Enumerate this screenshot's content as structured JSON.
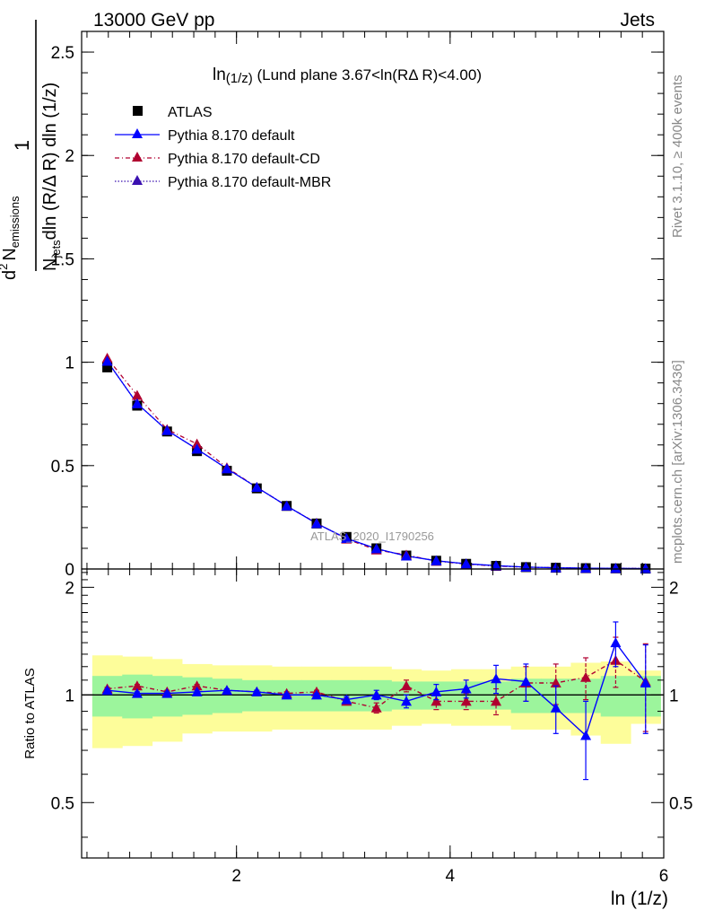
{
  "header": {
    "energy": "13000 GeV pp",
    "process": "Jets"
  },
  "side": {
    "rivet": "Rivet 3.1.10, ≥ 400k events",
    "mcplots": "mcplots.cern.ch [arXiv:1306.3436]"
  },
  "watermark": "ATLAS_2020_I1790256",
  "chart_data": [
    {
      "type": "scatter",
      "panel": "main",
      "title": "ln(1/z) (Lund plane 3.67<ln(RΔ R)<4.00)",
      "title_parts": {
        "main": "ln",
        "sub": "(1/z)",
        "rest": " (Lund plane 3.67<ln(RΔ R)<4.00)"
      },
      "ylabel": {
        "frac": "1",
        "njets": "N",
        "njets_sub": "jets",
        "den_rest": "dln (R/Δ R) dln (1/z)",
        "d2": "d",
        "sup2": "2",
        "nemis": "N",
        "nemis_sub": "emissions"
      },
      "xlabel": "ln (1/z)",
      "xlim": [
        0.55,
        6.0
      ],
      "ylim": [
        0,
        2.6
      ],
      "yticks": [
        0,
        0.5,
        1,
        1.5,
        2,
        2.5
      ],
      "ytick_labels": [
        "0",
        "0.5",
        "1",
        "1.5",
        "2",
        "2.5"
      ],
      "legend": [
        "ATLAS",
        "Pythia 8.170 default",
        "Pythia 8.170 default-CD",
        "Pythia 8.170 default-MBR"
      ],
      "x": [
        0.79,
        1.07,
        1.35,
        1.63,
        1.91,
        2.19,
        2.47,
        2.75,
        3.03,
        3.31,
        3.59,
        3.87,
        4.15,
        4.43,
        4.71,
        4.99,
        5.27,
        5.55,
        5.83
      ],
      "series": [
        {
          "name": "ATLAS",
          "color": "#000000",
          "values": [
            0.975,
            0.79,
            0.665,
            0.57,
            0.475,
            0.39,
            0.305,
            0.22,
            0.155,
            0.1,
            0.065,
            0.04,
            0.025,
            0.015,
            0.009,
            0.006,
            0.004,
            0.003,
            0.002
          ]
        },
        {
          "name": "Pythia 8.170 default",
          "color": "#0000ff",
          "values": [
            1.005,
            0.8,
            0.67,
            0.58,
            0.485,
            0.395,
            0.305,
            0.22,
            0.148,
            0.098,
            0.063,
            0.04,
            0.025,
            0.016,
            0.009,
            0.006,
            0.004,
            0.003,
            0.002
          ]
        },
        {
          "name": "Pythia 8.170 default-CD",
          "color": "#b00030",
          "values": [
            1.02,
            0.84,
            0.675,
            0.605,
            0.49,
            0.395,
            0.305,
            0.222,
            0.145,
            0.092,
            0.068,
            0.038,
            0.024,
            0.014,
            0.009,
            0.006,
            0.004,
            0.003,
            0.002
          ]
        },
        {
          "name": "Pythia 8.170 default-MBR",
          "color": "#3a10b0",
          "values": [
            1.005,
            0.8,
            0.67,
            0.58,
            0.485,
            0.395,
            0.305,
            0.22,
            0.148,
            0.098,
            0.063,
            0.04,
            0.025,
            0.016,
            0.009,
            0.006,
            0.004,
            0.003,
            0.002
          ]
        }
      ]
    },
    {
      "type": "scatter",
      "panel": "ratio",
      "ylabel": "Ratio to ATLAS",
      "xlabel": "ln (1/z)",
      "xlim": [
        0.55,
        6.0
      ],
      "ylim": [
        0.35,
        2.25
      ],
      "xticks": [
        2,
        4,
        6
      ],
      "xtick_labels": [
        "2",
        "4",
        "6"
      ],
      "yticks": [
        0.5,
        1,
        2
      ],
      "ytick_labels": [
        "0.5",
        "1",
        "2"
      ],
      "bin_edges": [
        0.65,
        0.93,
        1.21,
        1.49,
        1.77,
        2.05,
        2.33,
        2.61,
        2.89,
        3.17,
        3.45,
        3.73,
        4.01,
        4.29,
        4.57,
        4.85,
        5.13,
        5.41,
        5.69,
        5.97
      ],
      "band_green_low": [
        0.87,
        0.86,
        0.87,
        0.88,
        0.89,
        0.9,
        0.9,
        0.9,
        0.9,
        0.9,
        0.91,
        0.91,
        0.91,
        0.91,
        0.89,
        0.89,
        0.89,
        0.87,
        0.87
      ],
      "band_green_high": [
        1.13,
        1.14,
        1.13,
        1.12,
        1.11,
        1.1,
        1.1,
        1.1,
        1.1,
        1.1,
        1.09,
        1.09,
        1.09,
        1.09,
        1.11,
        1.11,
        1.11,
        1.13,
        1.13
      ],
      "band_yellow_low": [
        0.71,
        0.72,
        0.74,
        0.78,
        0.79,
        0.79,
        0.8,
        0.8,
        0.8,
        0.8,
        0.82,
        0.83,
        0.82,
        0.82,
        0.8,
        0.8,
        0.77,
        0.73,
        0.83
      ],
      "band_yellow_high": [
        1.29,
        1.28,
        1.26,
        1.22,
        1.21,
        1.21,
        1.2,
        1.2,
        1.2,
        1.2,
        1.18,
        1.17,
        1.18,
        1.18,
        1.2,
        1.2,
        1.23,
        1.24,
        1.17
      ],
      "x": [
        0.79,
        1.07,
        1.35,
        1.63,
        1.91,
        2.19,
        2.47,
        2.75,
        3.03,
        3.31,
        3.59,
        3.87,
        4.15,
        4.43,
        4.71,
        4.99,
        5.27,
        5.55,
        5.83
      ],
      "series": [
        {
          "name": "Pythia 8.170 default",
          "color": "#0000ff",
          "values": [
            1.03,
            1.01,
            1.01,
            1.02,
            1.03,
            1.02,
            1.0,
            1.0,
            0.97,
            1.0,
            0.96,
            1.02,
            1.04,
            1.11,
            1.09,
            0.92,
            0.77,
            1.4,
            1.08
          ],
          "err": [
            0.01,
            0.01,
            0.01,
            0.01,
            0.01,
            0.01,
            0.01,
            0.01,
            0.02,
            0.03,
            0.04,
            0.05,
            0.06,
            0.1,
            0.13,
            0.14,
            0.19,
            0.2,
            0.3
          ]
        },
        {
          "name": "Pythia 8.170 default-CD",
          "color": "#b00030",
          "values": [
            1.04,
            1.06,
            1.02,
            1.06,
            1.03,
            1.02,
            1.01,
            1.02,
            0.96,
            0.92,
            1.06,
            0.96,
            0.96,
            0.96,
            1.08,
            1.08,
            1.12,
            1.25,
            1.09
          ],
          "err": [
            0.01,
            0.01,
            0.01,
            0.01,
            0.01,
            0.01,
            0.01,
            0.01,
            0.02,
            0.03,
            0.04,
            0.05,
            0.05,
            0.08,
            0.12,
            0.14,
            0.15,
            0.2,
            0.3
          ]
        }
      ]
    }
  ]
}
